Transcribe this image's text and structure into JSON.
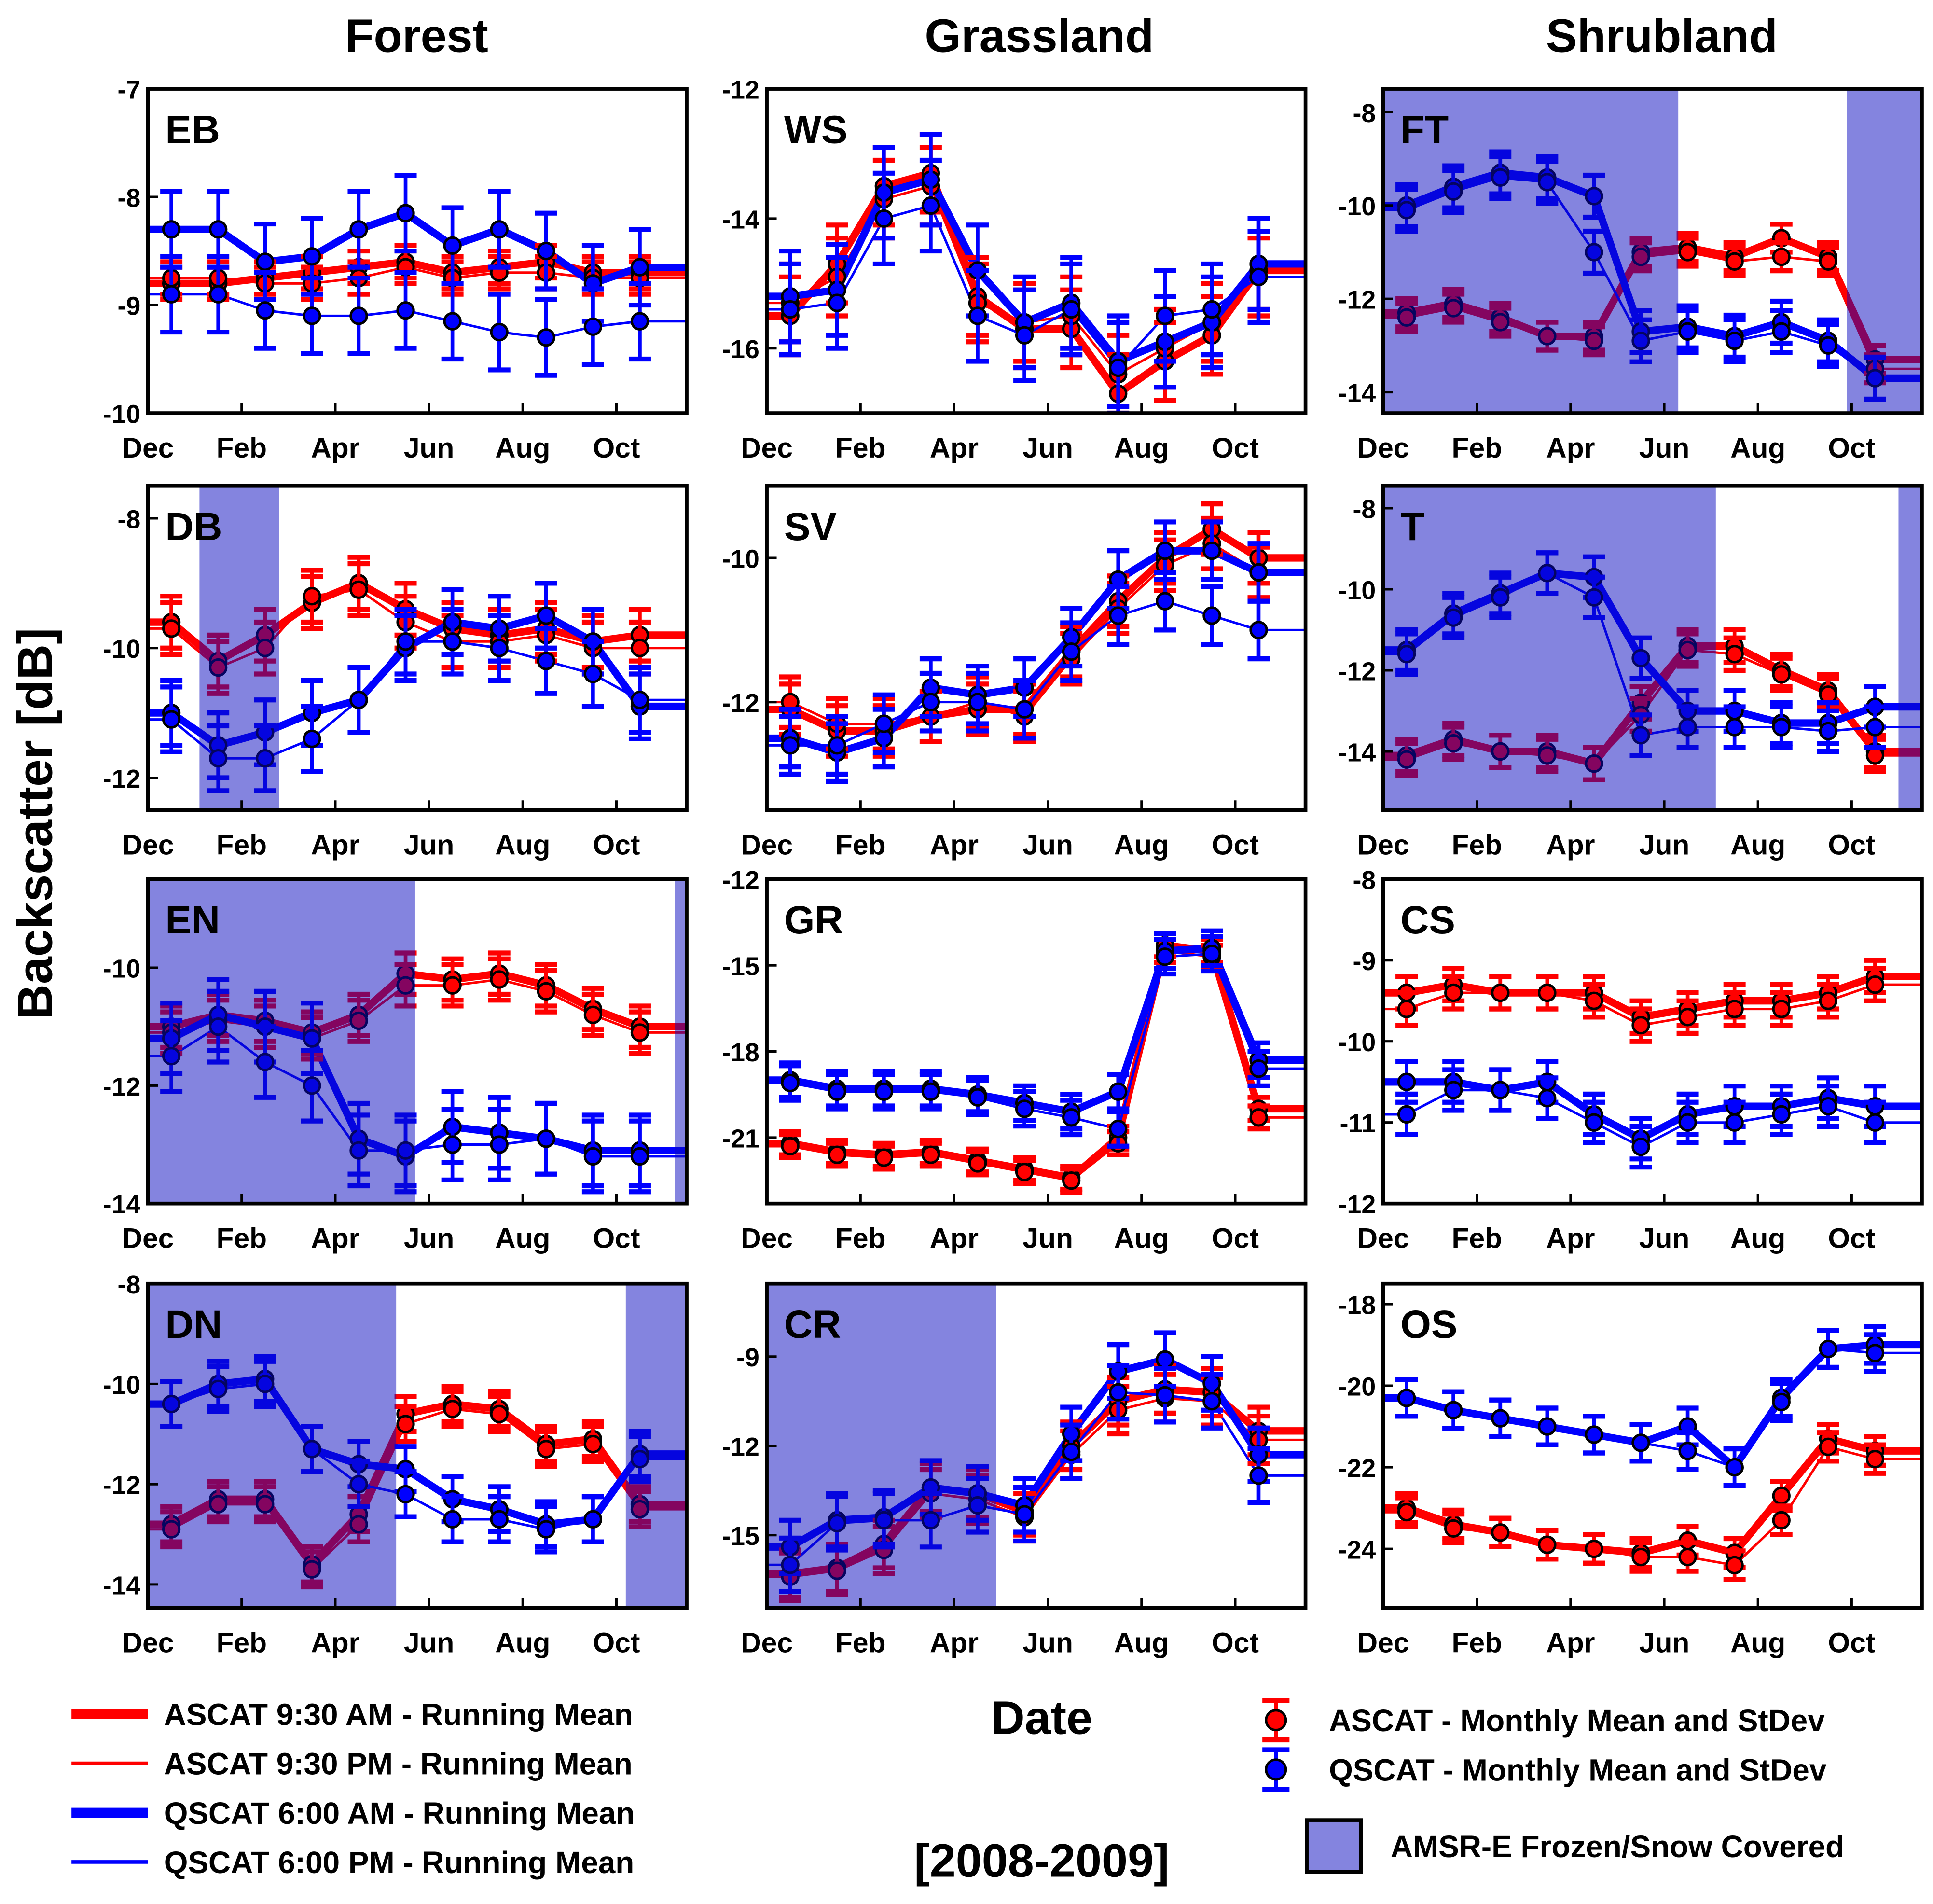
{
  "chart_data": {
    "type": "line",
    "column_titles": [
      "Forest",
      "Grassland",
      "Shrubland"
    ],
    "ylabel": "Backscatter [dB]",
    "xlabel": "Date",
    "period": "[2008-2009]",
    "x_tick_labels": [
      "Dec",
      "Feb",
      "Apr",
      "Jun",
      "Aug",
      "Oct"
    ],
    "x_tick_months": [
      0,
      2,
      4,
      6,
      8,
      10
    ],
    "x_range_months": [
      0,
      11.5
    ],
    "point_months": [
      0.5,
      1.5,
      2.5,
      3.5,
      4.5,
      5.5,
      6.5,
      7.5,
      8.5,
      9.5,
      10.5
    ],
    "colors": {
      "ascat": "#ff0000",
      "qscat": "#0000ff",
      "frozen": "#0a0ac0"
    },
    "legend": {
      "ascat_am": "ASCAT 9:30 AM - Running Mean",
      "ascat_pm": "ASCAT 9:30 PM - Running Mean",
      "qscat_am": "QSCAT 6:00 AM - Running Mean",
      "qscat_pm": "QSCAT 6:00 PM - Running Mean",
      "ascat_monthly": "ASCAT - Monthly Mean and StDev",
      "qscat_monthly": "QSCAT - Monthly Mean and StDev",
      "frozen": "AMSR-E Frozen/Snow Covered"
    },
    "panels": [
      {
        "label": "EB",
        "ylim": [
          -10,
          -7
        ],
        "yticks": [
          -7,
          -8,
          -9,
          -10
        ],
        "frozen": [],
        "std_a": 0.15,
        "std_q": 0.35,
        "ascat_am": [
          -8.8,
          -8.8,
          -8.75,
          -8.7,
          -8.65,
          -8.6,
          -8.7,
          -8.65,
          -8.6,
          -8.7,
          -8.7
        ],
        "ascat_pm": [
          -8.75,
          -8.75,
          -8.8,
          -8.8,
          -8.75,
          -8.65,
          -8.75,
          -8.7,
          -8.7,
          -8.75,
          -8.75
        ],
        "qscat_am": [
          -8.3,
          -8.3,
          -8.6,
          -8.55,
          -8.3,
          -8.15,
          -8.45,
          -8.3,
          -8.5,
          -8.8,
          -8.65
        ],
        "qscat_pm": [
          -8.9,
          -8.9,
          -9.05,
          -9.1,
          -9.1,
          -9.05,
          -9.15,
          -9.25,
          -9.3,
          -9.2,
          -9.15
        ]
      },
      {
        "label": "WS",
        "ylim": [
          -17,
          -12
        ],
        "yticks": [
          -12,
          -14,
          -16
        ],
        "frozen": [],
        "std_a": 0.6,
        "std_q": 0.7,
        "ascat_am": [
          -15.5,
          -14.7,
          -13.5,
          -13.3,
          -15.2,
          -15.7,
          -15.7,
          -16.7,
          -16.2,
          -15.8,
          -14.8
        ],
        "ascat_pm": [
          -15.3,
          -14.9,
          -13.7,
          -13.5,
          -15.3,
          -15.6,
          -15.5,
          -16.4,
          -16.0,
          -15.6,
          -14.9
        ],
        "qscat_am": [
          -15.2,
          -15.1,
          -13.6,
          -13.4,
          -14.8,
          -15.6,
          -15.3,
          -16.2,
          -15.9,
          -15.6,
          -14.7
        ],
        "qscat_pm": [
          -15.4,
          -15.3,
          -14.0,
          -13.8,
          -15.5,
          -15.8,
          -15.4,
          -16.3,
          -15.5,
          -15.4,
          -14.9
        ]
      },
      {
        "label": "FT",
        "ylim": [
          -14.45,
          -7.5
        ],
        "yticks": [
          -8,
          -10,
          -12,
          -14
        ],
        "frozen": [
          [
            0,
            6.3
          ],
          [
            9.9,
            11.5
          ]
        ],
        "std_a": 0.3,
        "std_q": 0.45,
        "ascat_am": [
          -12.3,
          -12.1,
          -12.4,
          -12.8,
          -12.8,
          -11.0,
          -10.9,
          -11.1,
          -10.7,
          -11.1,
          -13.3
        ],
        "ascat_pm": [
          -12.4,
          -12.2,
          -12.5,
          -12.8,
          -12.9,
          -11.1,
          -11.0,
          -11.2,
          -11.1,
          -11.2,
          -13.5
        ],
        "qscat_am": [
          -10.0,
          -9.6,
          -9.3,
          -9.4,
          -9.8,
          -12.7,
          -12.6,
          -12.8,
          -12.5,
          -12.9,
          -13.7
        ],
        "qscat_pm": [
          -10.1,
          -9.7,
          -9.4,
          -9.5,
          -11.0,
          -12.9,
          -12.7,
          -12.9,
          -12.7,
          -13.0,
          -13.7
        ]
      },
      {
        "label": "DB",
        "ylim": [
          -12.5,
          -7.5
        ],
        "yticks": [
          -8,
          -10,
          -12
        ],
        "frozen": [
          [
            1.1,
            2.8
          ]
        ],
        "std_a": 0.4,
        "std_q": 0.5,
        "ascat_am": [
          -9.6,
          -10.2,
          -9.8,
          -9.3,
          -9.0,
          -9.4,
          -9.7,
          -9.8,
          -9.7,
          -9.9,
          -9.8
        ],
        "ascat_pm": [
          -9.7,
          -10.3,
          -10.0,
          -9.2,
          -9.1,
          -9.6,
          -9.9,
          -9.9,
          -9.8,
          -10.0,
          -10.0
        ],
        "qscat_am": [
          -11.0,
          -11.5,
          -11.3,
          -11.0,
          -10.8,
          -10.0,
          -9.6,
          -9.7,
          -9.5,
          -9.9,
          -10.9
        ],
        "qscat_pm": [
          -11.1,
          -11.7,
          -11.7,
          -11.4,
          -10.8,
          -9.9,
          -9.9,
          -10.0,
          -10.2,
          -10.4,
          -10.8
        ]
      },
      {
        "label": "SV",
        "ylim": [
          -13.5,
          -9
        ],
        "yticks": [
          -10,
          -12
        ],
        "frozen": [],
        "std_a": 0.35,
        "std_q": 0.4,
        "ascat_am": [
          -12.1,
          -12.4,
          -12.4,
          -12.2,
          -12.1,
          -12.1,
          -11.3,
          -10.6,
          -10.0,
          -9.6,
          -10.0
        ],
        "ascat_pm": [
          -12.0,
          -12.3,
          -12.3,
          -12.2,
          -12.0,
          -12.2,
          -11.4,
          -10.7,
          -10.1,
          -9.8,
          -10.2
        ],
        "qscat_am": [
          -12.5,
          -12.7,
          -12.5,
          -11.8,
          -11.9,
          -11.8,
          -11.1,
          -10.3,
          -9.9,
          -9.9,
          -10.2
        ],
        "qscat_pm": [
          -12.6,
          -12.6,
          -12.3,
          -12.0,
          -12.0,
          -12.1,
          -11.3,
          -10.8,
          -10.6,
          -10.8,
          -11.0
        ]
      },
      {
        "label": "T",
        "ylim": [
          -15.45,
          -7.45
        ],
        "yticks": [
          -8,
          -10,
          -12,
          -14
        ],
        "frozen": [
          [
            0,
            7.1
          ],
          [
            11.0,
            11.5
          ]
        ],
        "std_a": 0.4,
        "std_q": 0.5,
        "ascat_am": [
          -14.1,
          -13.7,
          -14.0,
          -14.0,
          -14.3,
          -12.8,
          -11.4,
          -11.4,
          -12.0,
          -12.5,
          -14.0
        ],
        "ascat_pm": [
          -14.2,
          -13.8,
          -14.0,
          -14.1,
          -14.3,
          -13.1,
          -11.5,
          -11.6,
          -12.1,
          -12.6,
          -14.1
        ],
        "qscat_am": [
          -11.5,
          -10.6,
          -10.1,
          -9.6,
          -9.7,
          -11.7,
          -13.0,
          -13.0,
          -13.3,
          -13.3,
          -12.9
        ],
        "qscat_pm": [
          -11.6,
          -10.7,
          -10.2,
          -9.6,
          -10.2,
          -13.6,
          -13.4,
          -13.4,
          -13.4,
          -13.5,
          -13.4
        ]
      },
      {
        "label": "EN",
        "ylim": [
          -14,
          -8.5
        ],
        "yticks": [
          -10,
          -12,
          -14
        ],
        "frozen": [
          [
            0,
            5.7
          ],
          [
            11.25,
            11.5
          ]
        ],
        "std_a": 0.35,
        "std_q": 0.6,
        "ascat_am": [
          -11.0,
          -10.8,
          -10.9,
          -11.1,
          -10.8,
          -10.1,
          -10.2,
          -10.1,
          -10.3,
          -10.7,
          -11.0
        ],
        "ascat_pm": [
          -11.1,
          -10.9,
          -11.0,
          -11.2,
          -10.9,
          -10.3,
          -10.3,
          -10.2,
          -10.4,
          -10.8,
          -11.1
        ],
        "qscat_am": [
          -11.2,
          -10.8,
          -11.0,
          -11.2,
          -12.9,
          -13.2,
          -12.7,
          -12.8,
          -12.9,
          -13.1,
          -13.1
        ],
        "qscat_pm": [
          -11.5,
          -11.0,
          -11.6,
          -12.0,
          -13.1,
          -13.1,
          -13.0,
          -13.0,
          -12.9,
          -13.2,
          -13.2
        ]
      },
      {
        "label": "GR",
        "ylim": [
          -23.3,
          -12
        ],
        "yticks": [
          -12,
          -15,
          -18,
          -21
        ],
        "frozen": [],
        "std_a": 0.4,
        "std_q": 0.6,
        "ascat_am": [
          -21.2,
          -21.5,
          -21.6,
          -21.5,
          -21.8,
          -22.1,
          -22.4,
          -21.0,
          -14.3,
          -14.5,
          -20.0
        ],
        "ascat_pm": [
          -21.3,
          -21.6,
          -21.7,
          -21.6,
          -21.9,
          -22.2,
          -22.5,
          -21.2,
          -14.5,
          -14.7,
          -20.3
        ],
        "qscat_am": [
          -19.0,
          -19.3,
          -19.3,
          -19.3,
          -19.5,
          -19.8,
          -20.1,
          -19.4,
          -14.5,
          -14.4,
          -18.3
        ],
        "qscat_pm": [
          -19.1,
          -19.4,
          -19.4,
          -19.4,
          -19.6,
          -20.0,
          -20.3,
          -20.7,
          -14.7,
          -14.6,
          -18.6
        ]
      },
      {
        "label": "CS",
        "ylim": [
          -12,
          -8
        ],
        "yticks": [
          -8,
          -9,
          -10,
          -11,
          -12
        ],
        "frozen": [],
        "std_a": 0.2,
        "std_q": 0.25,
        "ascat_am": [
          -9.4,
          -9.3,
          -9.4,
          -9.4,
          -9.4,
          -9.7,
          -9.6,
          -9.5,
          -9.5,
          -9.4,
          -9.2
        ],
        "ascat_pm": [
          -9.6,
          -9.4,
          -9.4,
          -9.4,
          -9.5,
          -9.8,
          -9.7,
          -9.6,
          -9.6,
          -9.5,
          -9.3
        ],
        "qscat_am": [
          -10.5,
          -10.5,
          -10.6,
          -10.5,
          -10.9,
          -11.2,
          -10.9,
          -10.8,
          -10.8,
          -10.7,
          -10.8
        ],
        "qscat_pm": [
          -10.9,
          -10.6,
          -10.6,
          -10.7,
          -11.0,
          -11.3,
          -11.0,
          -11.0,
          -10.9,
          -10.8,
          -11.0
        ]
      },
      {
        "label": "DN",
        "ylim": [
          -14.47,
          -8
        ],
        "yticks": [
          -8,
          -10,
          -12,
          -14
        ],
        "frozen": [
          [
            0,
            5.3
          ],
          [
            10.2,
            11.5
          ]
        ],
        "std_a": 0.35,
        "std_q": 0.45,
        "ascat_am": [
          -12.8,
          -12.3,
          -12.3,
          -13.6,
          -12.6,
          -10.6,
          -10.4,
          -10.5,
          -11.2,
          -11.1,
          -12.4
        ],
        "ascat_pm": [
          -12.9,
          -12.4,
          -12.4,
          -13.7,
          -12.8,
          -10.8,
          -10.5,
          -10.6,
          -11.3,
          -11.2,
          -12.5
        ],
        "qscat_am": [
          -10.4,
          -10.0,
          -9.9,
          -11.3,
          -11.6,
          -11.7,
          -12.3,
          -12.5,
          -12.8,
          -12.7,
          -11.4
        ],
        "qscat_pm": [
          -10.4,
          -10.1,
          -10.0,
          -11.3,
          -12.0,
          -12.2,
          -12.7,
          -12.7,
          -12.9,
          -12.7,
          -11.5
        ]
      },
      {
        "label": "CR",
        "ylim": [
          -17.45,
          -6.55
        ],
        "yticks": [
          -9,
          -12,
          -15
        ],
        "frozen": [
          [
            0,
            4.9
          ]
        ],
        "std_a": 0.8,
        "std_q": 0.9,
        "ascat_am": [
          -16.3,
          -16.1,
          -15.3,
          -13.4,
          -13.6,
          -14.2,
          -12.0,
          -10.5,
          -10.1,
          -10.2,
          -11.5
        ],
        "ascat_pm": [
          -16.4,
          -16.2,
          -15.5,
          -13.6,
          -13.8,
          -14.4,
          -12.3,
          -10.8,
          -10.4,
          -10.5,
          -11.8
        ],
        "qscat_am": [
          -15.4,
          -14.5,
          -14.4,
          -13.4,
          -13.6,
          -14.0,
          -11.6,
          -9.5,
          -9.1,
          -9.9,
          -12.3
        ],
        "qscat_pm": [
          -16.0,
          -14.6,
          -14.5,
          -14.5,
          -14.0,
          -14.3,
          -12.2,
          -10.2,
          -10.3,
          -10.5,
          -13.0
        ]
      },
      {
        "label": "OS",
        "ylim": [
          -25.45,
          -17.5
        ],
        "yticks": [
          -18,
          -20,
          -22,
          -24
        ],
        "frozen": [],
        "std_a": 0.35,
        "std_q": 0.45,
        "ascat_am": [
          -23.0,
          -23.4,
          -23.6,
          -23.9,
          -24.0,
          -24.1,
          -23.8,
          -24.1,
          -22.7,
          -21.3,
          -21.6
        ],
        "ascat_pm": [
          -23.1,
          -23.5,
          -23.6,
          -23.9,
          -24.0,
          -24.2,
          -24.2,
          -24.4,
          -23.3,
          -21.5,
          -21.8
        ],
        "qscat_am": [
          -20.3,
          -20.6,
          -20.8,
          -21.0,
          -21.2,
          -21.4,
          -21.0,
          -22.0,
          -20.3,
          -19.1,
          -19.0
        ],
        "qscat_pm": [
          -20.3,
          -20.6,
          -20.8,
          -21.0,
          -21.2,
          -21.4,
          -21.6,
          -22.0,
          -20.4,
          -19.1,
          -19.2
        ]
      }
    ]
  }
}
